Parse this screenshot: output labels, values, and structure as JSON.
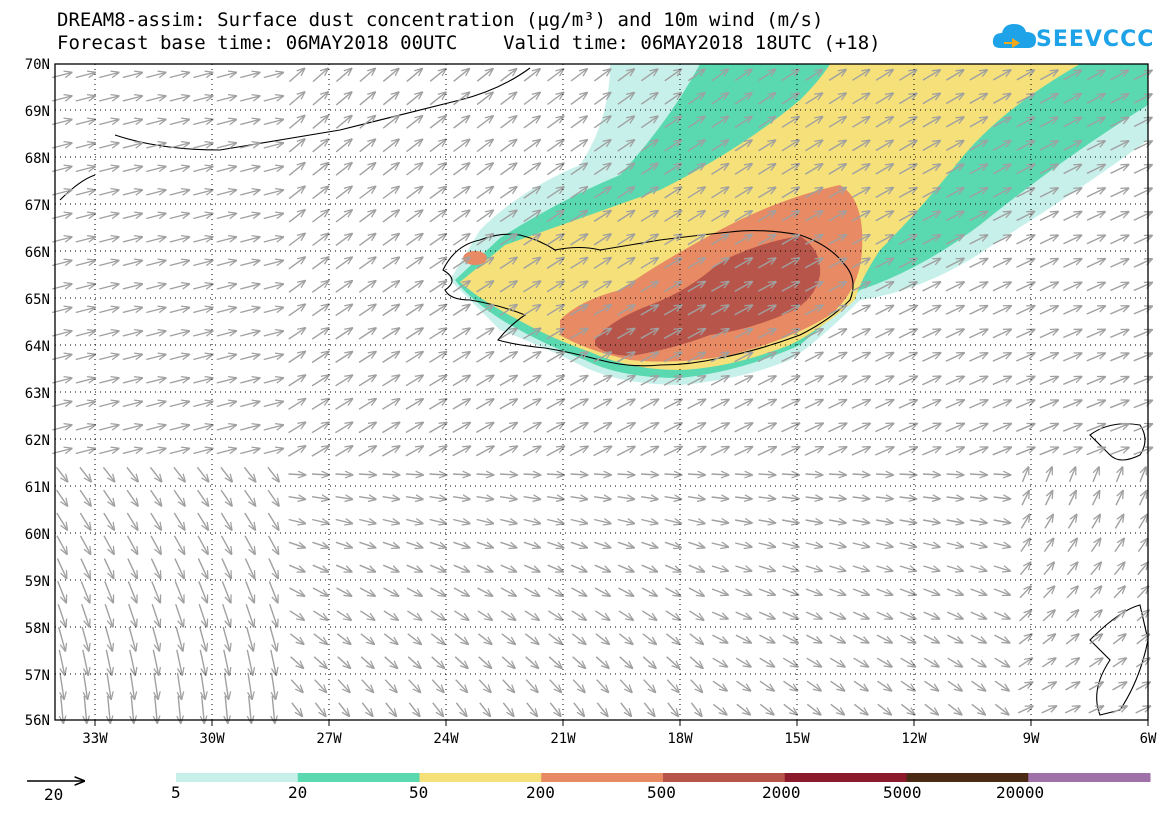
{
  "title": {
    "line1": "DREAM8-assim: Surface dust concentration (μg/m³) and 10m wind (m/s)",
    "line2": "Forecast base time: 06MAY2018 00UTC    Valid time: 06MAY2018 18UTC (+18)"
  },
  "logo": {
    "text": "SEEVCCC",
    "color": "#1fa3e8"
  },
  "map": {
    "lat_labels": [
      "70N",
      "69N",
      "68N",
      "67N",
      "66N",
      "65N",
      "64N",
      "63N",
      "62N",
      "61N",
      "60N",
      "59N",
      "58N",
      "57N",
      "56N"
    ],
    "lon_labels": [
      "33W",
      "30W",
      "27W",
      "24W",
      "21W",
      "18W",
      "15W",
      "12W",
      "9W",
      "6W"
    ]
  },
  "legend": {
    "reference_vector": "20",
    "levels": [
      "5",
      "20",
      "50",
      "200",
      "500",
      "2000",
      "5000",
      "20000"
    ],
    "colors": [
      "#c8f0ea",
      "#5ad9b0",
      "#f5e07a",
      "#e88a64",
      "#b8554a",
      "#8b1a2a",
      "#4a2a14",
      "#a070a8"
    ]
  }
}
